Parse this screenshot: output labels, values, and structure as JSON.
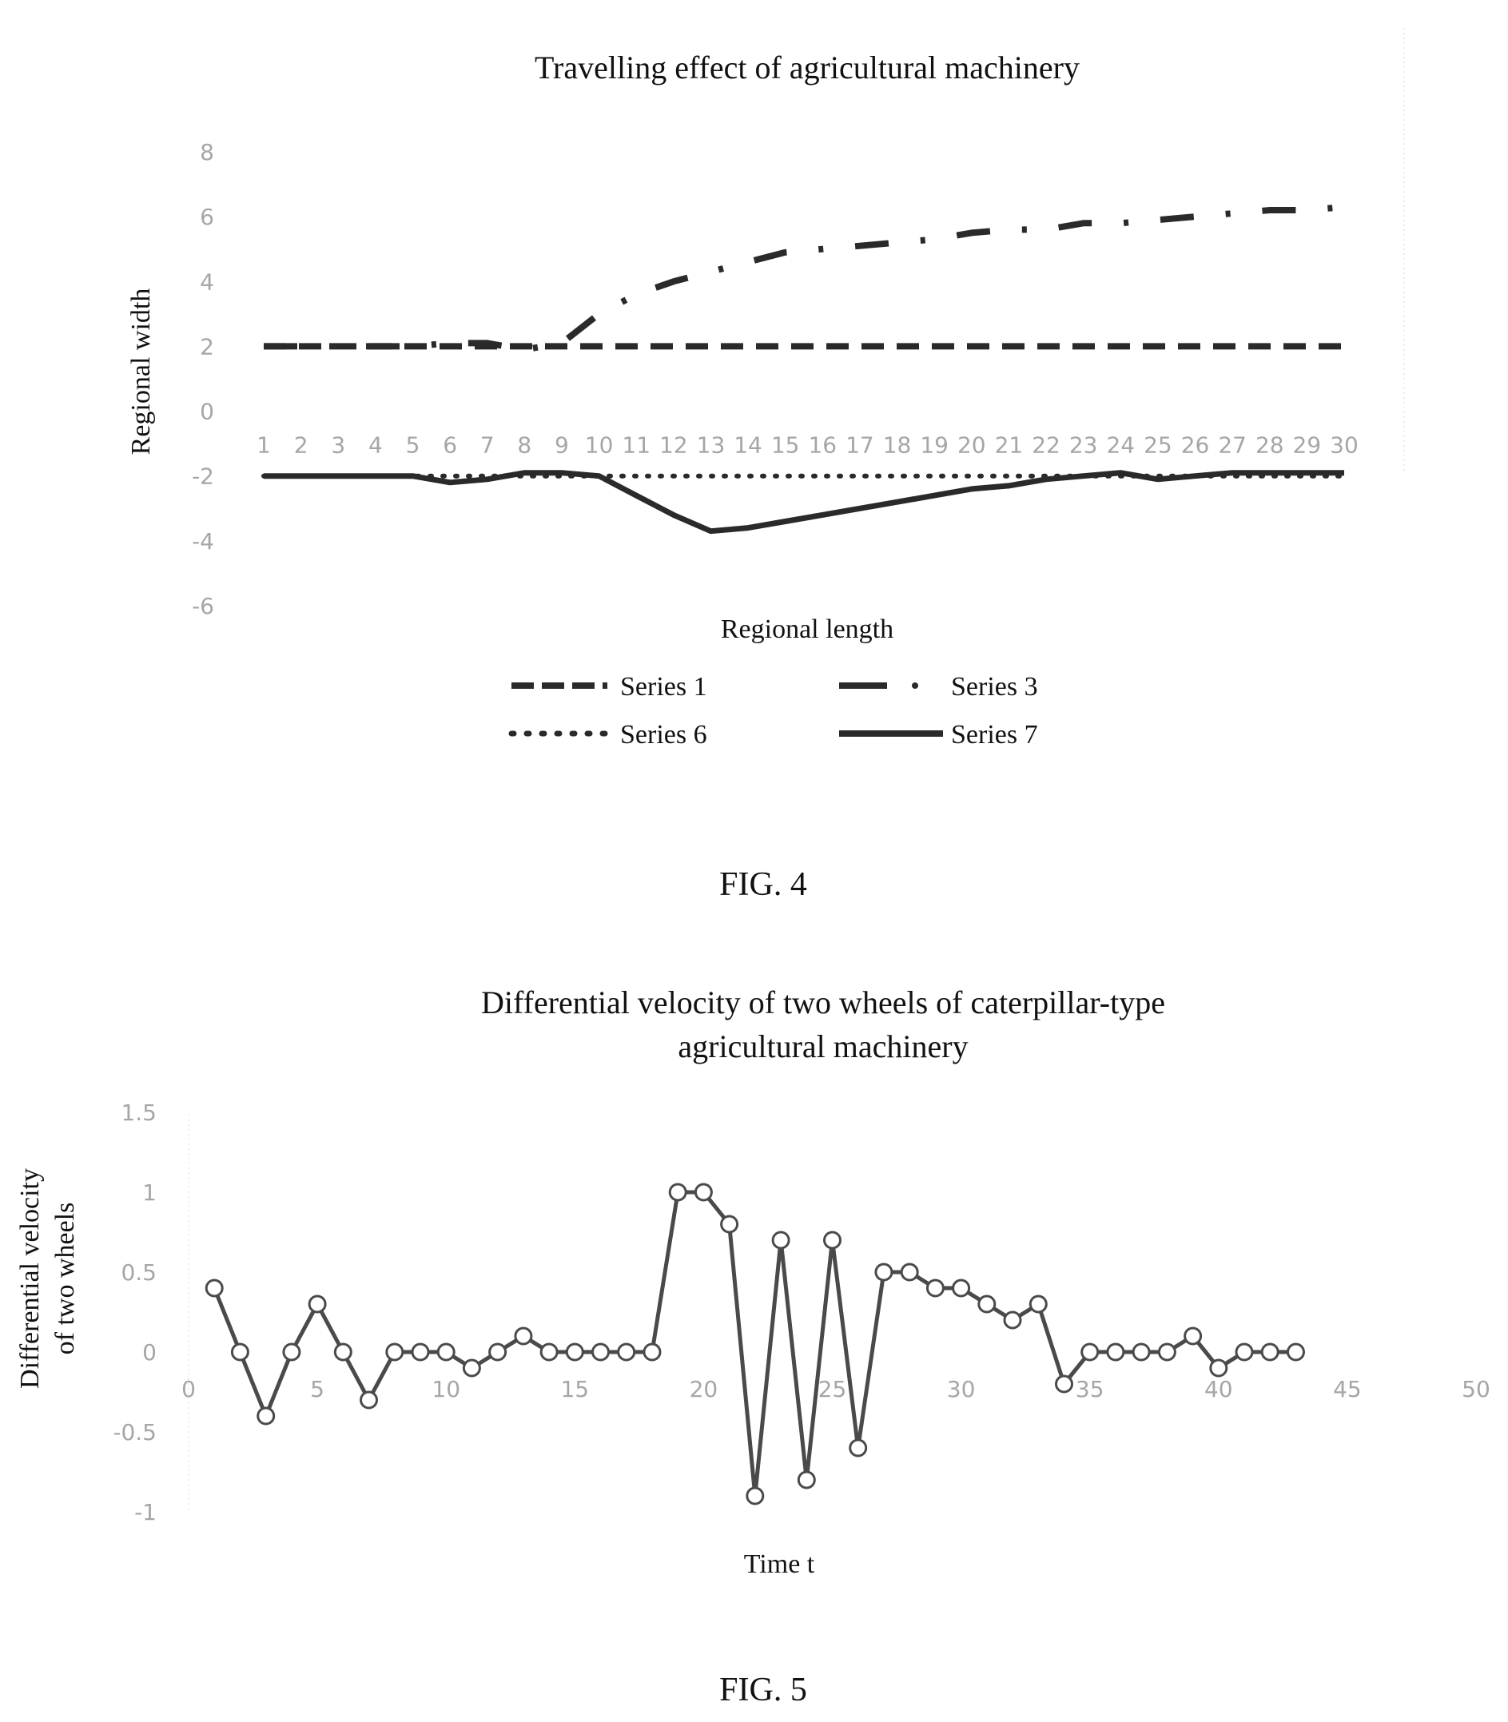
{
  "figures": [
    {
      "caption": "FIG. 4"
    },
    {
      "caption": "FIG. 5"
    }
  ],
  "chart_data": [
    {
      "type": "line",
      "title": "Travelling effect of agricultural machinery",
      "xlabel": "Regional length",
      "ylabel": "Regional width",
      "ylim": [
        -6,
        8
      ],
      "y_ticks": [
        "8",
        "6",
        "4",
        "2",
        "0",
        "-2",
        "-4",
        "-6"
      ],
      "categories": [
        "1",
        "2",
        "3",
        "4",
        "5",
        "6",
        "7",
        "8",
        "9",
        "10",
        "11",
        "12",
        "13",
        "14",
        "15",
        "16",
        "17",
        "18",
        "19",
        "20",
        "21",
        "22",
        "23",
        "24",
        "25",
        "26",
        "27",
        "28",
        "29",
        "30"
      ],
      "x_axis_at": 0,
      "grid": false,
      "legend_position": "bottom",
      "series": [
        {
          "name": "Series 1",
          "style": "dashed",
          "values": [
            2,
            2,
            2,
            2,
            2,
            2,
            2,
            2,
            2,
            2,
            2,
            2,
            2,
            2,
            2,
            2,
            2,
            2,
            2,
            2,
            2,
            2,
            2,
            2,
            2,
            2,
            2,
            2,
            2,
            2
          ]
        },
        {
          "name": "Series 3",
          "style": "dash-dot",
          "values": [
            2,
            2,
            2,
            2,
            2,
            2.1,
            2.1,
            1.9,
            2.1,
            3,
            3.6,
            4,
            4.3,
            4.6,
            4.9,
            5,
            5.1,
            5.2,
            5.3,
            5.5,
            5.6,
            5.6,
            5.8,
            5.8,
            5.9,
            6,
            6.1,
            6.2,
            6.2,
            6.3
          ]
        },
        {
          "name": "Series 6",
          "style": "dotted",
          "values": [
            -2,
            -2,
            -2,
            -2,
            -2,
            -2,
            -2,
            -2,
            -2,
            -2,
            -2,
            -2,
            -2,
            -2,
            -2,
            -2,
            -2,
            -2,
            -2,
            -2,
            -2,
            -2,
            -2,
            -2,
            -2,
            -2,
            -2,
            -2,
            -2,
            -2
          ]
        },
        {
          "name": "Series 7",
          "style": "solid",
          "values": [
            -2,
            -2,
            -2,
            -2,
            -2,
            -2.2,
            -2.1,
            -1.9,
            -1.9,
            -2,
            -2.6,
            -3.2,
            -3.7,
            -3.6,
            -3.4,
            -3.2,
            -3.0,
            -2.8,
            -2.6,
            -2.4,
            -2.3,
            -2.1,
            -2,
            -1.9,
            -2.1,
            -2,
            -1.9,
            -1.9,
            -1.9,
            -1.9
          ]
        }
      ]
    },
    {
      "type": "line",
      "title": "Differential velocity of two wheels of caterpillar-type agricultural machinery",
      "title_lines": [
        "Differential velocity of two wheels of caterpillar-type",
        "agricultural machinery"
      ],
      "xlabel": "Time t",
      "ylabel": "Differential velocity of two wheels",
      "ylabel_lines": [
        "Differential velocity",
        "of two wheels"
      ],
      "xlim": [
        0,
        50
      ],
      "ylim": [
        -1,
        1.5
      ],
      "x_ticks": [
        "0",
        "5",
        "10",
        "15",
        "20",
        "25",
        "30",
        "35",
        "40",
        "45",
        "50"
      ],
      "y_ticks": [
        "1.5",
        "1",
        "0.5",
        "0",
        "-0.5",
        "-1"
      ],
      "x_axis_at": 0,
      "grid": false,
      "legend_position": "none",
      "series": [
        {
          "marker": "circle",
          "x": [
            1,
            2,
            3,
            4,
            5,
            6,
            7,
            8,
            9,
            10,
            11,
            12,
            13,
            14,
            15,
            16,
            17,
            18,
            19,
            20,
            21,
            22,
            23,
            24,
            25,
            26,
            27,
            28,
            29,
            30,
            31,
            32,
            33,
            34,
            35,
            36,
            37,
            38,
            39,
            40,
            41,
            42,
            43
          ],
          "values": [
            0.4,
            0,
            -0.4,
            0,
            0.3,
            0,
            -0.3,
            0,
            0,
            0,
            -0.1,
            0,
            0.1,
            0,
            0,
            0,
            0,
            0,
            1,
            1,
            0.8,
            -0.9,
            0.7,
            -0.8,
            0.7,
            -0.6,
            0.5,
            0.5,
            0.4,
            0.4,
            0.3,
            0.2,
            0.3,
            -0.2,
            0,
            0,
            0,
            0,
            0.1,
            -0.1,
            0,
            0,
            0
          ]
        }
      ]
    }
  ]
}
